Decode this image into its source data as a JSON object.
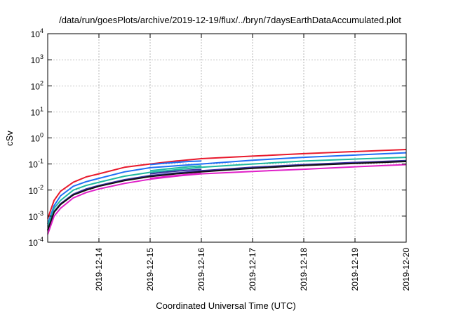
{
  "chart_data": {
    "type": "line",
    "title": "/data/run/goesPlots/archive/2019-12-19/flux/../bryn/7daysEarthDataAccumulated.plot",
    "xlabel": "Coordinated Universal Time (UTC)",
    "ylabel": "cSv",
    "yscale": "log",
    "ylim": [
      0.0001,
      10000
    ],
    "xlim": [
      "2019-12-13",
      "2019-12-20"
    ],
    "grid": true,
    "legend": "none",
    "y_ticks": [
      {
        "value": 0.0001,
        "base": "10",
        "exp": "-4"
      },
      {
        "value": 0.001,
        "base": "10",
        "exp": "-3"
      },
      {
        "value": 0.01,
        "base": "10",
        "exp": "-2"
      },
      {
        "value": 0.1,
        "base": "10",
        "exp": "-1"
      },
      {
        "value": 1,
        "base": "10",
        "exp": "0"
      },
      {
        "value": 10,
        "base": "10",
        "exp": "1"
      },
      {
        "value": 100,
        "base": "10",
        "exp": "2"
      },
      {
        "value": 1000,
        "base": "10",
        "exp": "3"
      },
      {
        "value": 10000,
        "base": "10",
        "exp": "4"
      }
    ],
    "x_ticks": [
      "2019-12-14",
      "2019-12-15",
      "2019-12-16",
      "2019-12-17",
      "2019-12-18",
      "2019-12-19",
      "2019-12-20"
    ],
    "series": [
      {
        "color": "#e8192c",
        "x": [
          "2019-12-13 00:00",
          "2019-12-13 03:00",
          "2019-12-13 06:00",
          "2019-12-13 12:00",
          "2019-12-13 18:00",
          "2019-12-14 00:00",
          "2019-12-14 12:00",
          "2019-12-15 00:00",
          "2019-12-15 12:00",
          "2019-12-16 00:00",
          "2019-12-17 00:00",
          "2019-12-18 00:00",
          "2019-12-19 00:00",
          "2019-12-20 00:00"
        ],
        "y": [
          0.0008,
          0.004,
          0.009,
          0.02,
          0.032,
          0.042,
          0.075,
          0.1,
          0.13,
          0.16,
          0.2,
          0.25,
          0.3,
          0.36
        ]
      },
      {
        "color": "#1f6ff5",
        "x": [
          "2019-12-13 00:00",
          "2019-12-13 03:00",
          "2019-12-13 06:00",
          "2019-12-13 12:00",
          "2019-12-13 18:00",
          "2019-12-14 00:00",
          "2019-12-14 12:00",
          "2019-12-15 00:00",
          "2019-12-15 12:00",
          "2019-12-16 00:00",
          "2019-12-17 00:00",
          "2019-12-18 00:00",
          "2019-12-19 00:00",
          "2019-12-20 00:00"
        ],
        "y": [
          0.0005,
          0.0025,
          0.006,
          0.014,
          0.021,
          0.028,
          0.05,
          0.072,
          0.085,
          0.1,
          0.14,
          0.18,
          0.22,
          0.27
        ]
      },
      {
        "color": "#1fb8a0",
        "x": [
          "2019-12-13 00:00",
          "2019-12-13 03:00",
          "2019-12-13 06:00",
          "2019-12-13 12:00",
          "2019-12-13 18:00",
          "2019-12-14 00:00",
          "2019-12-14 12:00",
          "2019-12-15 00:00",
          "2019-12-15 12:00",
          "2019-12-16 00:00",
          "2019-12-17 00:00",
          "2019-12-18 00:00",
          "2019-12-19 00:00",
          "2019-12-20 00:00"
        ],
        "y": [
          0.0004,
          0.002,
          0.004,
          0.01,
          0.015,
          0.02,
          0.034,
          0.048,
          0.06,
          0.075,
          0.1,
          0.13,
          0.155,
          0.18
        ]
      },
      {
        "color": "#3a2fa0",
        "x": [
          "2019-12-13 00:00",
          "2019-12-13 03:00",
          "2019-12-13 06:00",
          "2019-12-13 12:00",
          "2019-12-13 18:00",
          "2019-12-14 00:00",
          "2019-12-14 12:00",
          "2019-12-15 00:00",
          "2019-12-15 12:00",
          "2019-12-16 00:00",
          "2019-12-17 00:00",
          "2019-12-18 00:00",
          "2019-12-19 00:00",
          "2019-12-20 00:00"
        ],
        "y": [
          0.0003,
          0.0015,
          0.003,
          0.007,
          0.011,
          0.015,
          0.025,
          0.036,
          0.045,
          0.055,
          0.075,
          0.095,
          0.115,
          0.135
        ]
      },
      {
        "color": "#111111",
        "x": [
          "2019-12-13 00:00",
          "2019-12-13 03:00",
          "2019-12-13 06:00",
          "2019-12-13 12:00",
          "2019-12-13 18:00",
          "2019-12-14 00:00",
          "2019-12-14 12:00",
          "2019-12-15 00:00",
          "2019-12-15 12:00",
          "2019-12-16 00:00",
          "2019-12-17 00:00",
          "2019-12-18 00:00",
          "2019-12-19 00:00",
          "2019-12-20 00:00"
        ],
        "y": [
          0.00028,
          0.0014,
          0.0028,
          0.0065,
          0.01,
          0.014,
          0.023,
          0.033,
          0.042,
          0.05,
          0.068,
          0.088,
          0.105,
          0.125
        ]
      },
      {
        "color": "#e020c8",
        "x": [
          "2019-12-13 00:00",
          "2019-12-13 03:00",
          "2019-12-13 06:00",
          "2019-12-13 12:00",
          "2019-12-13 18:00",
          "2019-12-14 00:00",
          "2019-12-14 12:00",
          "2019-12-15 00:00",
          "2019-12-15 12:00",
          "2019-12-16 00:00",
          "2019-12-17 00:00",
          "2019-12-18 00:00",
          "2019-12-19 00:00",
          "2019-12-20 00:00"
        ],
        "y": [
          0.0002,
          0.001,
          0.002,
          0.005,
          0.008,
          0.011,
          0.018,
          0.026,
          0.034,
          0.042,
          0.052,
          0.063,
          0.078,
          0.095
        ]
      },
      {
        "color": "#1f6ff5",
        "x": [
          "2019-12-15 00:00",
          "2019-12-15 06:00",
          "2019-12-15 12:00",
          "2019-12-15 18:00",
          "2019-12-16 00:00"
        ],
        "y": [
          0.095,
          0.105,
          0.115,
          0.125,
          0.13
        ]
      },
      {
        "color": "#1fb8a0",
        "x": [
          "2019-12-15 00:00",
          "2019-12-15 06:00",
          "2019-12-15 12:00",
          "2019-12-15 18:00",
          "2019-12-16 00:00"
        ],
        "y": [
          0.055,
          0.062,
          0.07,
          0.078,
          0.085
        ]
      },
      {
        "color": "#3a2fa0",
        "x": [
          "2019-12-15 00:00",
          "2019-12-15 06:00",
          "2019-12-15 12:00",
          "2019-12-15 18:00",
          "2019-12-16 00:00"
        ],
        "y": [
          0.042,
          0.048,
          0.053,
          0.058,
          0.062
        ]
      },
      {
        "color": "#e020c8",
        "x": [
          "2019-12-15 00:00",
          "2019-12-15 06:00",
          "2019-12-15 12:00",
          "2019-12-15 18:00",
          "2019-12-16 00:00"
        ],
        "y": [
          0.028,
          0.032,
          0.036,
          0.04,
          0.044
        ]
      }
    ]
  }
}
